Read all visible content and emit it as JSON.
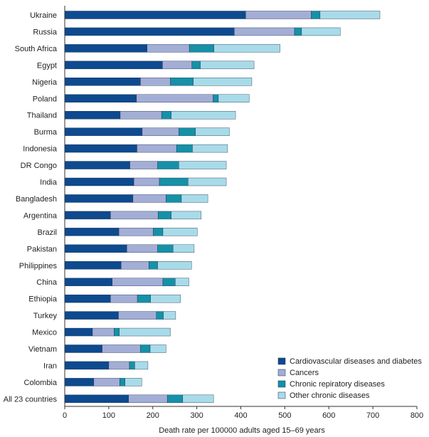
{
  "chart_data": {
    "type": "bar",
    "orientation": "horizontal",
    "stacked": true,
    "categories": [
      "Ukraine",
      "Russia",
      "South Africa",
      "Egypt",
      "Nigeria",
      "Poland",
      "Thailand",
      "Burma",
      "Indonesia",
      "DR Congo",
      "India",
      "Bangladesh",
      "Argentina",
      "Brazil",
      "Pakistan",
      "Philippines",
      "China",
      "Ethiopia",
      "Turkey",
      "Mexico",
      "Vietnam",
      "Iran",
      "Colombia",
      "All 23 countries"
    ],
    "series": [
      {
        "name": "Cardiovascular diseases and diabetes",
        "color": "#0d4a8f",
        "values": [
          411,
          385,
          187,
          222,
          172,
          163,
          126,
          176,
          164,
          148,
          157,
          155,
          104,
          123,
          141,
          128,
          108,
          104,
          122,
          63,
          85,
          100,
          66,
          145
        ]
      },
      {
        "name": "Cancers",
        "color": "#a3aed6",
        "values": [
          149,
          137,
          96,
          67,
          68,
          174,
          94,
          83,
          90,
          63,
          58,
          75,
          108,
          78,
          70,
          63,
          115,
          61,
          86,
          49,
          87,
          47,
          59,
          88
        ]
      },
      {
        "name": "Chronic repiratory diseases",
        "color": "#1591a8",
        "values": [
          20,
          16,
          56,
          19,
          52,
          12,
          22,
          38,
          36,
          48,
          65,
          35,
          30,
          22,
          35,
          20,
          28,
          30,
          16,
          12,
          22,
          12,
          12,
          35
        ]
      },
      {
        "name": "Other chronic diseases",
        "color": "#a8dbe9",
        "values": [
          136,
          88,
          150,
          122,
          133,
          70,
          146,
          77,
          80,
          108,
          87,
          60,
          68,
          78,
          48,
          77,
          31,
          68,
          28,
          116,
          36,
          30,
          38,
          70
        ]
      }
    ],
    "xlabel": "Death rate per 100000 adults aged 15–69 years",
    "xlim": [
      0,
      800
    ],
    "xticks": [
      0,
      100,
      200,
      300,
      400,
      500,
      600,
      700,
      800
    ],
    "legend_position": "bottom-right",
    "grid": false
  }
}
